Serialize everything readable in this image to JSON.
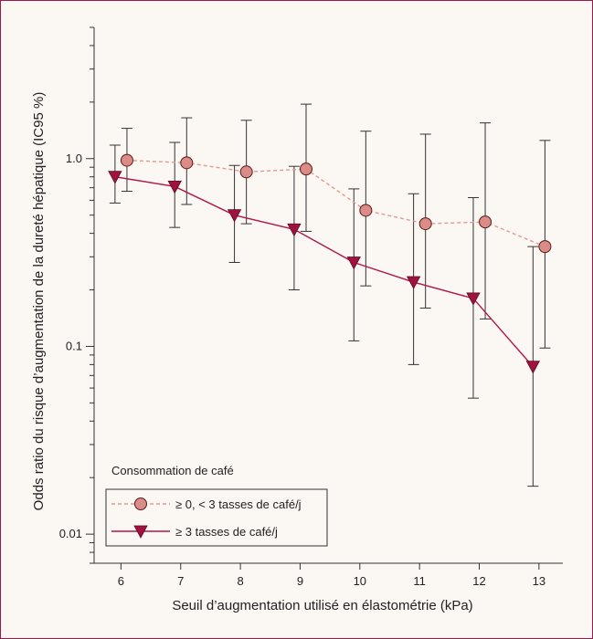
{
  "chart_data": {
    "type": "line",
    "title": "",
    "xlabel": "Seuil d’augmentation utilisé en élastométrie (kPa)",
    "ylabel": "Odds ratio du risque d’augmentation de la dureté hépatique (IC95 %)",
    "y_scale": "log",
    "ylim": [
      0.007,
      5
    ],
    "xlim": [
      5.55,
      13.4
    ],
    "categories": [
      "6",
      "7",
      "8",
      "9",
      "10",
      "11",
      "12",
      "13"
    ],
    "yticks": [
      {
        "value": 0.01,
        "label": "0.01"
      },
      {
        "value": 0.1,
        "label": "0.1"
      },
      {
        "value": 1,
        "label": "1.0"
      }
    ],
    "legend_title": "Consommation de café",
    "legend_position": "bottom-left",
    "series": [
      {
        "name": "≥ 0, < 3 tasses de café/j",
        "color": "#dc8c86",
        "line_color": "#e39a94",
        "line_style": "dashed",
        "marker": "circle",
        "x": [
          6.1,
          7.1,
          8.1,
          9.1,
          10.1,
          11.1,
          12.1,
          13.1
        ],
        "y": [
          0.98,
          0.95,
          0.85,
          0.88,
          0.53,
          0.45,
          0.46,
          0.34
        ],
        "ci_low": [
          0.67,
          0.57,
          0.45,
          0.41,
          0.21,
          0.16,
          0.14,
          0.098
        ],
        "ci_high": [
          1.45,
          1.65,
          1.6,
          1.95,
          1.4,
          1.35,
          1.55,
          1.25
        ]
      },
      {
        "name": "≥ 3 tasses de café/j",
        "color": "#a0133f",
        "line_color": "#b0164a",
        "line_style": "solid",
        "marker": "triangle-down",
        "x": [
          5.9,
          6.9,
          7.9,
          8.9,
          9.9,
          10.9,
          11.9,
          12.9
        ],
        "y": [
          0.8,
          0.71,
          0.5,
          0.42,
          0.28,
          0.22,
          0.18,
          0.078
        ],
        "ci_low": [
          0.58,
          0.43,
          0.28,
          0.2,
          0.107,
          0.08,
          0.053,
          0.018
        ],
        "ci_high": [
          1.18,
          1.22,
          0.92,
          0.91,
          0.69,
          0.65,
          0.62,
          0.34
        ]
      }
    ]
  }
}
